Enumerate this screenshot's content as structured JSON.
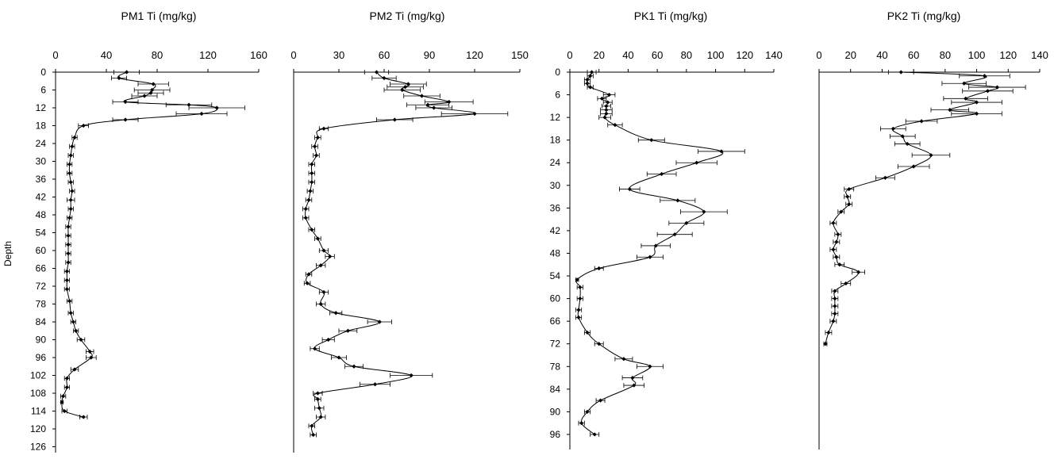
{
  "ylabel": "Depth",
  "chart_data": [
    {
      "type": "line",
      "title": "PM1  Ti (mg/kg)",
      "xlim": [
        0,
        160
      ],
      "xticks": [
        0,
        40,
        80,
        120,
        160
      ],
      "ylim": [
        0,
        128
      ],
      "yticks": [
        0,
        6,
        12,
        18,
        24,
        30,
        36,
        42,
        48,
        54,
        60,
        66,
        72,
        78,
        84,
        90,
        96,
        102,
        108,
        114,
        120,
        126
      ],
      "series": [
        {
          "points": [
            [
              56,
              0,
              10
            ],
            [
              50,
              2,
              6
            ],
            [
              77,
              4,
              12
            ],
            [
              76,
              6,
              14
            ],
            [
              75,
              7,
              10
            ],
            [
              70,
              8,
              10
            ],
            [
              55,
              10,
              10
            ],
            [
              105,
              11,
              18
            ],
            [
              127,
              12,
              22
            ],
            [
              115,
              14,
              20
            ],
            [
              55,
              16,
              10
            ],
            [
              22,
              18,
              4
            ],
            [
              15,
              22,
              2
            ],
            [
              13,
              25,
              2
            ],
            [
              12,
              28,
              2
            ],
            [
              11,
              31,
              2
            ],
            [
              11,
              34,
              2
            ],
            [
              12,
              37,
              2
            ],
            [
              13,
              40,
              2
            ],
            [
              12,
              43,
              3
            ],
            [
              12,
              46,
              2
            ],
            [
              11,
              49,
              2
            ],
            [
              10,
              52,
              2
            ],
            [
              10,
              55,
              2
            ],
            [
              10,
              58,
              2
            ],
            [
              10,
              61,
              2
            ],
            [
              10,
              64,
              2
            ],
            [
              9,
              67,
              2
            ],
            [
              9,
              70,
              2
            ],
            [
              9,
              73,
              2
            ],
            [
              11,
              77,
              2
            ],
            [
              12,
              81,
              2
            ],
            [
              14,
              84,
              2
            ],
            [
              16,
              87,
              2
            ],
            [
              20,
              90,
              3
            ],
            [
              27,
              94,
              3
            ],
            [
              28,
              96,
              4
            ],
            [
              15,
              100,
              3
            ],
            [
              9,
              103,
              2
            ],
            [
              9,
              106,
              2
            ],
            [
              6,
              109,
              2
            ],
            [
              5,
              111,
              1
            ],
            [
              7,
              114,
              2
            ],
            [
              22,
              116,
              3
            ]
          ]
        }
      ]
    },
    {
      "type": "line",
      "title": "PM2  Ti (mg/kg)",
      "xlim": [
        0,
        150
      ],
      "xticks": [
        0,
        30,
        60,
        90,
        120,
        150
      ],
      "ylim": [
        0,
        128
      ],
      "yticks": [],
      "series": [
        {
          "points": [
            [
              55,
              0,
              8
            ],
            [
              60,
              2,
              8
            ],
            [
              76,
              4,
              12
            ],
            [
              74,
              5,
              12
            ],
            [
              72,
              6,
              12
            ],
            [
              85,
              8,
              12
            ],
            [
              103,
              10,
              16
            ],
            [
              89,
              11,
              14
            ],
            [
              93,
              12,
              12
            ],
            [
              120,
              14,
              22
            ],
            [
              67,
              16,
              12
            ],
            [
              20,
              19,
              3
            ],
            [
              16,
              22,
              2
            ],
            [
              14,
              25,
              2
            ],
            [
              15,
              28,
              2
            ],
            [
              12,
              31,
              2
            ],
            [
              12,
              34,
              2
            ],
            [
              12,
              37,
              2
            ],
            [
              11,
              40,
              2
            ],
            [
              10,
              43,
              2
            ],
            [
              8,
              46,
              2
            ],
            [
              8,
              49,
              2
            ],
            [
              12,
              53,
              2
            ],
            [
              16,
              56,
              2
            ],
            [
              20,
              60,
              3
            ],
            [
              24,
              62,
              3
            ],
            [
              18,
              65,
              3
            ],
            [
              10,
              68,
              2
            ],
            [
              9,
              71,
              2
            ],
            [
              20,
              74,
              3
            ],
            [
              18,
              78,
              3
            ],
            [
              28,
              81,
              4
            ],
            [
              57,
              84,
              8
            ],
            [
              36,
              87,
              6
            ],
            [
              23,
              90,
              4
            ],
            [
              14,
              93,
              3
            ],
            [
              30,
              96,
              5
            ],
            [
              40,
              99,
              6
            ],
            [
              78,
              102,
              14
            ],
            [
              54,
              105,
              10
            ],
            [
              16,
              108,
              3
            ],
            [
              16,
              110,
              2
            ],
            [
              17,
              113,
              3
            ],
            [
              18,
              116,
              3
            ],
            [
              12,
              119,
              2
            ],
            [
              13,
              122,
              2
            ]
          ]
        }
      ]
    },
    {
      "type": "line",
      "title": "PK1  Ti (mg/kg)",
      "xlim": [
        0,
        140
      ],
      "xticks": [
        0,
        20,
        40,
        60,
        80,
        100,
        120,
        140
      ],
      "ylim": [
        0,
        100
      ],
      "yticks": [
        0,
        6,
        12,
        18,
        24,
        30,
        36,
        42,
        48,
        54,
        60,
        66,
        72,
        78,
        84,
        90,
        96
      ],
      "series": [
        {
          "points": [
            [
              15,
              0,
              3
            ],
            [
              14,
              1,
              2
            ],
            [
              12,
              2,
              2
            ],
            [
              12,
              3,
              2
            ],
            [
              14,
              4,
              2
            ],
            [
              27,
              6,
              4
            ],
            [
              22,
              7,
              3
            ],
            [
              26,
              8,
              3
            ],
            [
              25,
              9,
              3
            ],
            [
              25,
              10,
              4
            ],
            [
              25,
              11,
              4
            ],
            [
              24,
              12,
              4
            ],
            [
              31,
              14,
              5
            ],
            [
              56,
              18,
              9
            ],
            [
              104,
              21,
              16
            ],
            [
              87,
              24,
              14
            ],
            [
              63,
              27,
              10
            ],
            [
              41,
              31,
              7
            ],
            [
              74,
              34,
              12
            ],
            [
              92,
              37,
              16
            ],
            [
              80,
              40,
              12
            ],
            [
              72,
              43,
              12
            ],
            [
              59,
              46,
              10
            ],
            [
              55,
              49,
              9
            ],
            [
              20,
              52,
              3
            ],
            [
              5,
              55,
              1
            ],
            [
              7,
              57,
              2
            ],
            [
              7,
              60,
              2
            ],
            [
              6,
              63,
              2
            ],
            [
              6,
              65,
              2
            ],
            [
              12,
              69,
              2
            ],
            [
              20,
              72,
              3
            ],
            [
              37,
              76,
              6
            ],
            [
              55,
              78,
              9
            ],
            [
              43,
              81,
              7
            ],
            [
              44,
              83,
              7
            ],
            [
              21,
              87,
              3
            ],
            [
              12,
              90,
              2
            ],
            [
              8,
              93,
              2
            ],
            [
              17,
              96,
              3
            ]
          ]
        }
      ]
    },
    {
      "type": "line",
      "title": "PK2  Ti (mg/kg)",
      "xlim": [
        0,
        140
      ],
      "xticks": [
        0,
        20,
        40,
        60,
        80,
        100,
        120,
        140
      ],
      "ylim": [
        0,
        100
      ],
      "yticks": [],
      "series": [
        {
          "points": [
            [
              52,
              0,
              8
            ],
            [
              105,
              1,
              16
            ],
            [
              92,
              3,
              14
            ],
            [
              113,
              4,
              18
            ],
            [
              107,
              5,
              16
            ],
            [
              93,
              7,
              14
            ],
            [
              100,
              8,
              16
            ],
            [
              83,
              10,
              12
            ],
            [
              100,
              11,
              16
            ],
            [
              65,
              13,
              10
            ],
            [
              47,
              15,
              8
            ],
            [
              53,
              17,
              8
            ],
            [
              56,
              19,
              8
            ],
            [
              71,
              22,
              12
            ],
            [
              60,
              25,
              10
            ],
            [
              42,
              28,
              6
            ],
            [
              19,
              31,
              3
            ],
            [
              18,
              33,
              2
            ],
            [
              19,
              35,
              2
            ],
            [
              14,
              37,
              2
            ],
            [
              9,
              40,
              2
            ],
            [
              12,
              43,
              2
            ],
            [
              11,
              45,
              2
            ],
            [
              9,
              47,
              2
            ],
            [
              11,
              49,
              2
            ],
            [
              13,
              51,
              3
            ],
            [
              25,
              53,
              4
            ],
            [
              17,
              56,
              3
            ],
            [
              10,
              58,
              2
            ],
            [
              10,
              60,
              2
            ],
            [
              10,
              62,
              2
            ],
            [
              10,
              64,
              2
            ],
            [
              9,
              66,
              2
            ],
            [
              6,
              69,
              2
            ],
            [
              4,
              72,
              1
            ]
          ]
        }
      ]
    }
  ]
}
